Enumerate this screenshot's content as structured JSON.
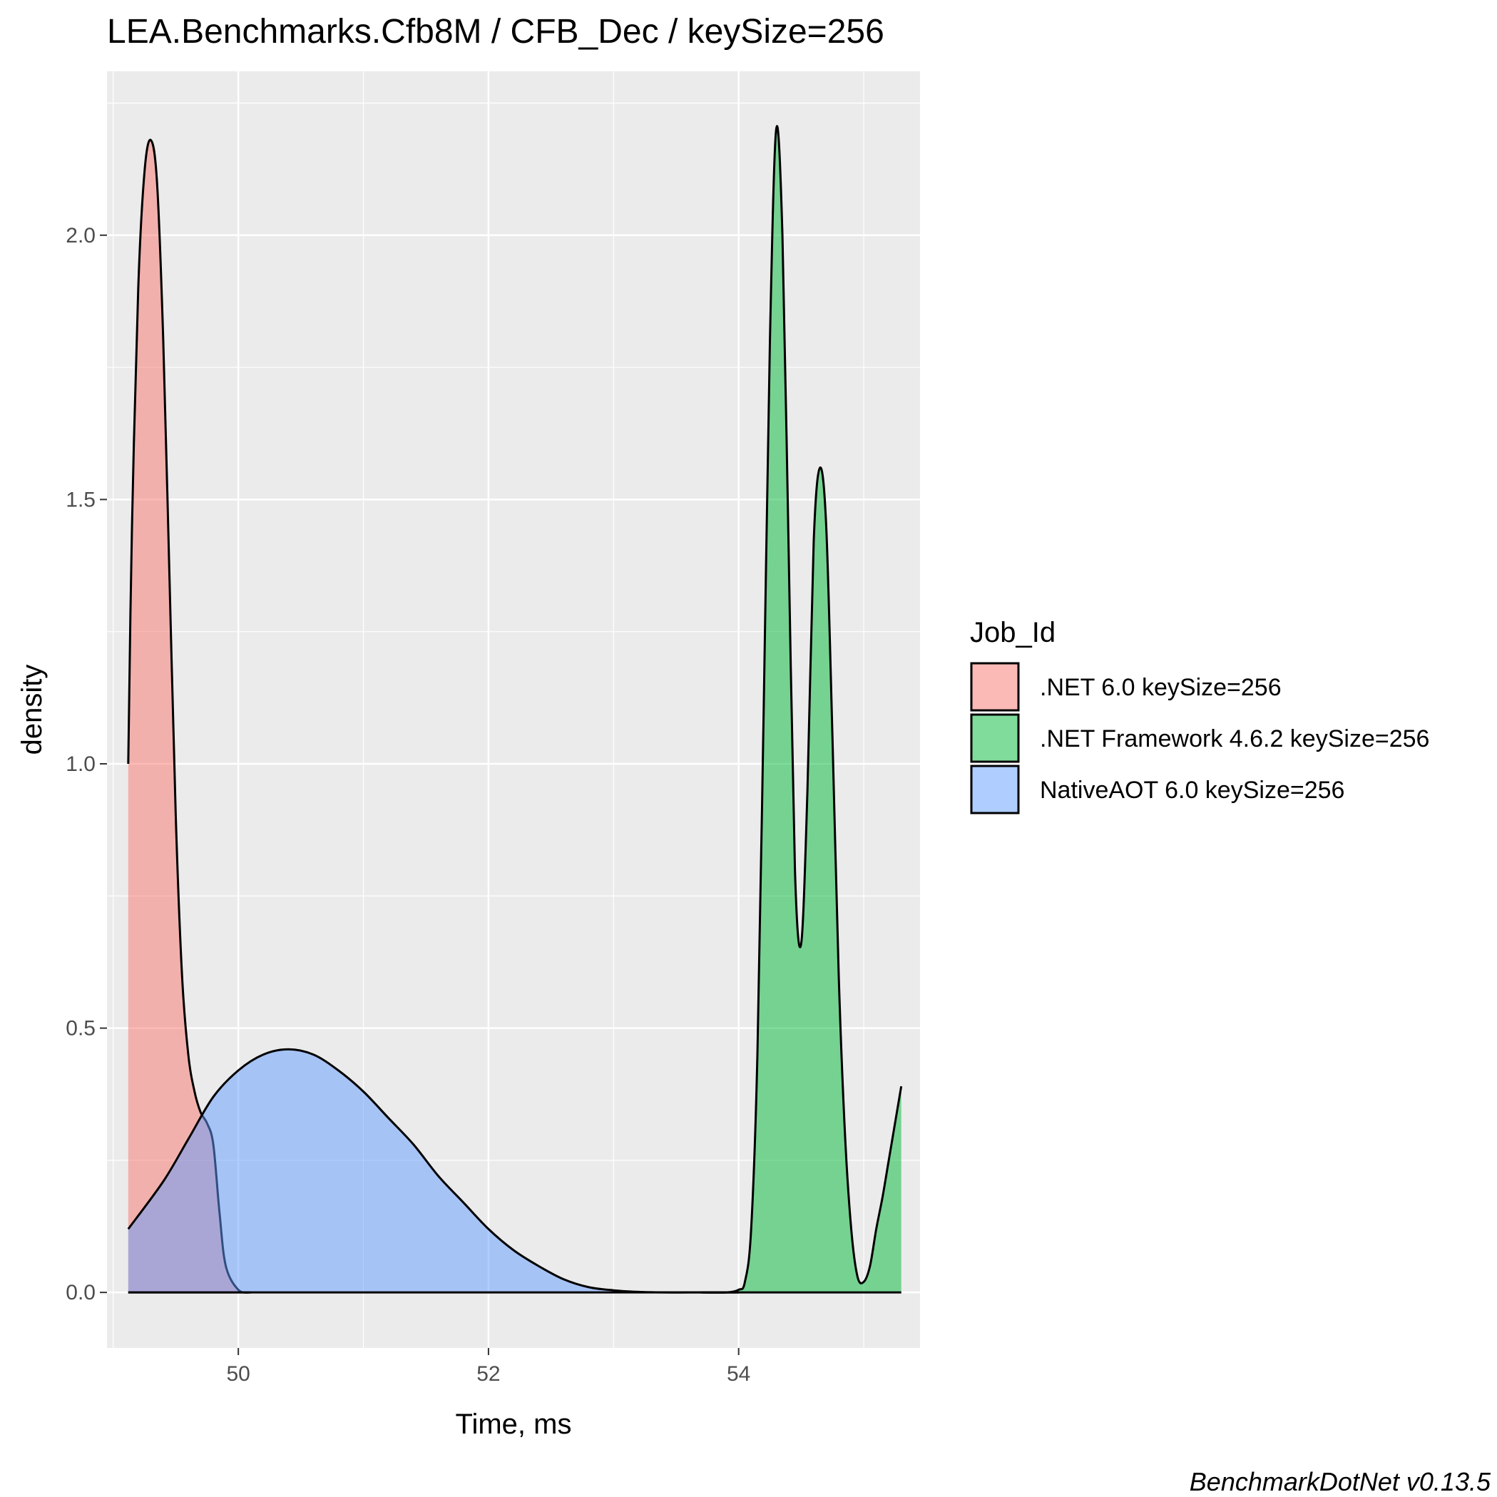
{
  "chart_data": {
    "type": "area",
    "title": "LEA.Benchmarks.Cfb8M / CFB_Dec / keySize=256",
    "xlabel": "Time, ms",
    "ylabel": "density",
    "caption": "BenchmarkDotNet v0.13.5",
    "xlim": [
      48.95,
      55.45
    ],
    "ylim": [
      -0.105,
      2.31
    ],
    "x_ticks": [
      50,
      52,
      54
    ],
    "x_tick_labels": [
      "50",
      "52",
      "54"
    ],
    "y_ticks": [
      0.0,
      0.5,
      1.0,
      1.5,
      2.0
    ],
    "y_tick_labels": [
      "0.0",
      "0.5",
      "1.0",
      "1.5",
      "2.0"
    ],
    "grid": true,
    "legend": {
      "title": "Job_Id",
      "position": "right"
    },
    "series": [
      {
        "name": ".NET 6.0 keySize=256",
        "color": "#F8766D",
        "x": [
          49.12,
          49.15,
          49.2,
          49.25,
          49.3,
          49.35,
          49.4,
          49.45,
          49.5,
          49.55,
          49.6,
          49.65,
          49.7,
          49.75,
          49.8,
          49.85,
          49.9,
          50.0,
          50.1
        ],
        "y": [
          1.0,
          1.45,
          1.9,
          2.12,
          2.18,
          2.1,
          1.8,
          1.35,
          0.9,
          0.6,
          0.45,
          0.38,
          0.34,
          0.32,
          0.28,
          0.15,
          0.05,
          0.005,
          0.0
        ]
      },
      {
        "name": ".NET Framework 4.6.2 keySize=256",
        "color": "#00BA38",
        "x": [
          53.7,
          53.9,
          54.0,
          54.05,
          54.1,
          54.15,
          54.2,
          54.25,
          54.3,
          54.35,
          54.4,
          54.45,
          54.5,
          54.55,
          54.6,
          54.65,
          54.7,
          54.75,
          54.8,
          54.85,
          54.9,
          54.95,
          55.0,
          55.05,
          55.1,
          55.15,
          55.2,
          55.25,
          55.3
        ],
        "y": [
          0.0,
          0.0,
          0.005,
          0.02,
          0.12,
          0.45,
          1.1,
          1.8,
          2.2,
          2.0,
          1.4,
          0.8,
          0.66,
          0.95,
          1.42,
          1.56,
          1.45,
          1.05,
          0.6,
          0.3,
          0.12,
          0.03,
          0.02,
          0.05,
          0.12,
          0.18,
          0.25,
          0.32,
          0.39
        ]
      },
      {
        "name": "NativeAOT 6.0 keySize=256",
        "color": "#619CFF",
        "x": [
          49.12,
          49.4,
          49.6,
          49.8,
          50.0,
          50.2,
          50.4,
          50.6,
          50.8,
          51.0,
          51.2,
          51.4,
          51.6,
          51.8,
          52.0,
          52.2,
          52.4,
          52.6,
          52.8,
          53.0,
          53.2,
          53.4,
          53.6,
          53.8,
          54.0
        ],
        "y": [
          0.12,
          0.21,
          0.29,
          0.37,
          0.42,
          0.45,
          0.46,
          0.45,
          0.42,
          0.38,
          0.33,
          0.28,
          0.22,
          0.17,
          0.12,
          0.08,
          0.05,
          0.025,
          0.01,
          0.004,
          0.001,
          0.0,
          0.0,
          0.0,
          0.0
        ]
      }
    ]
  }
}
